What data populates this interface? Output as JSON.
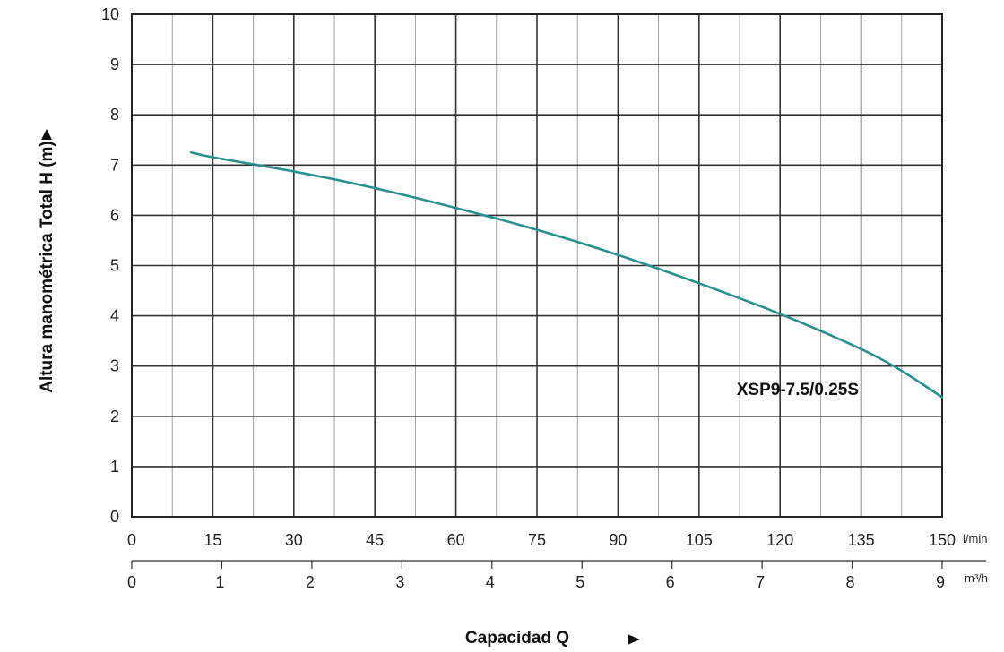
{
  "chart_data": {
    "type": "line",
    "ylabel": "Altura manométrica Total  H (m)",
    "xlabel": "Capacidad Q",
    "ylim": [
      0,
      10
    ],
    "y_ticks": [
      "0",
      "1",
      "2",
      "3",
      "4",
      "5",
      "6",
      "7",
      "8",
      "9",
      "10"
    ],
    "x_primary": {
      "unit": "l/min",
      "range": [
        0,
        150
      ],
      "ticks": [
        "0",
        "15",
        "30",
        "45",
        "60",
        "75",
        "90",
        "105",
        "120",
        "135",
        "150"
      ]
    },
    "x_secondary": {
      "unit": "m³/h",
      "range": [
        0,
        9
      ],
      "ticks": [
        "0",
        "1",
        "2",
        "3",
        "4",
        "5",
        "6",
        "7",
        "8",
        "9"
      ]
    },
    "grid": true,
    "series": [
      {
        "name": "XSP9-7.5/0.25S",
        "color": "#2a8f8f",
        "x": [
          11,
          15,
          30,
          45,
          60,
          75,
          90,
          105,
          120,
          135,
          142,
          150
        ],
        "y": [
          7.25,
          7.15,
          6.88,
          6.55,
          6.15,
          5.72,
          5.22,
          4.65,
          4.05,
          3.35,
          2.95,
          2.38
        ]
      }
    ]
  }
}
